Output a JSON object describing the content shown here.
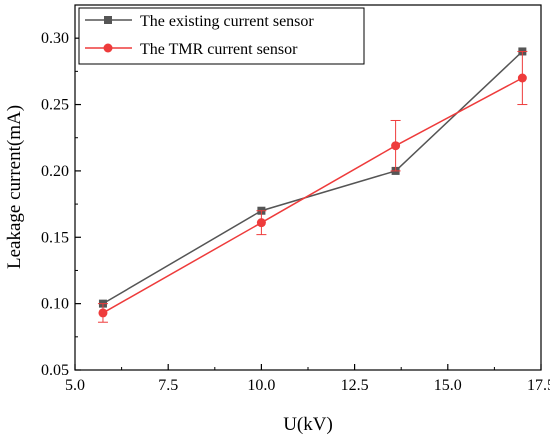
{
  "chart_data": {
    "type": "line",
    "xlabel": "U(kV)",
    "ylabel": "Leakage current(mA)",
    "xlim": [
      5.0,
      17.5
    ],
    "ylim": [
      0.05,
      0.325
    ],
    "x_ticks": [
      5.0,
      7.5,
      10.0,
      12.5,
      15.0,
      17.5
    ],
    "x_tick_labels": [
      "5.0",
      "7.5",
      "10.0",
      "12.5",
      "15.0",
      "17.5"
    ],
    "y_ticks": [
      0.05,
      0.1,
      0.15,
      0.2,
      0.25,
      0.3
    ],
    "y_tick_labels": [
      "0.05",
      "0.10",
      "0.15",
      "0.20",
      "0.25",
      "0.30"
    ],
    "grid": false,
    "legend_position": "top-left",
    "series": [
      {
        "name": "The existing current sensor",
        "color": "#555555",
        "marker": "square",
        "x": [
          5.75,
          10.0,
          13.6,
          17.0
        ],
        "y": [
          0.1,
          0.17,
          0.2,
          0.29
        ]
      },
      {
        "name": "The TMR current sensor",
        "color": "#ee3b3b",
        "marker": "circle",
        "x": [
          5.75,
          10.0,
          13.6,
          17.0
        ],
        "y": [
          0.093,
          0.161,
          0.219,
          0.27
        ],
        "error": [
          0.007,
          0.009,
          0.019,
          0.02
        ]
      }
    ]
  }
}
